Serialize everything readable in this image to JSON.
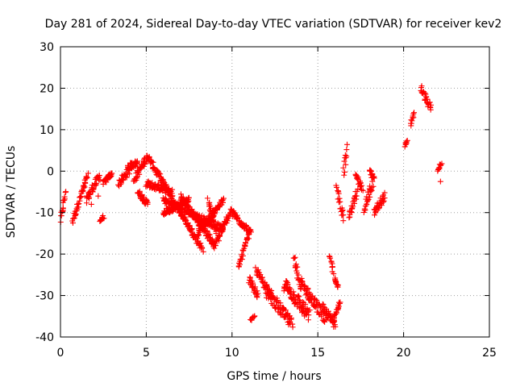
{
  "chart_data": {
    "type": "scatter",
    "title": "Day 281 of 2024, Sidereal Day-to-day VTEC variation (SDTVAR) for receiver kev2",
    "xlabel": "GPS time / hours",
    "ylabel": "SDTVAR / TECUs",
    "xlim": [
      0,
      25
    ],
    "ylim": [
      -40,
      30
    ],
    "x_ticks": [
      "0",
      "5",
      "10",
      "15",
      "20",
      "25"
    ],
    "y_ticks": [
      "30",
      "20",
      "10",
      "0",
      "-10",
      "-20",
      "-30",
      "-40"
    ],
    "grid": true,
    "marker": "plus",
    "series_color": "#ff0000",
    "segments": [
      {
        "x0": 0.0,
        "x1": 0.3,
        "y0": -12,
        "y1": -5,
        "jitter": 1.5
      },
      {
        "x0": 0.7,
        "x1": 1.6,
        "y0": -12,
        "y1": -1,
        "jitter": 1.5
      },
      {
        "x0": 1.5,
        "x1": 2.3,
        "y0": -7,
        "y1": -1,
        "jitter": 2.0
      },
      {
        "x0": 2.3,
        "x1": 2.5,
        "y0": -12,
        "y1": -11,
        "jitter": 0.8
      },
      {
        "x0": 2.5,
        "x1": 3.0,
        "y0": -3,
        "y1": -0.5,
        "jitter": 1.2
      },
      {
        "x0": 3.4,
        "x1": 4.0,
        "y0": -3,
        "y1": 0,
        "jitter": 1.8
      },
      {
        "x0": 3.9,
        "x1": 4.5,
        "y0": 1,
        "y1": 2,
        "jitter": 1.5
      },
      {
        "x0": 4.3,
        "x1": 5.0,
        "y0": -2,
        "y1": 3,
        "jitter": 1.8
      },
      {
        "x0": 4.5,
        "x1": 5.1,
        "y0": -5,
        "y1": -8,
        "jitter": 1.5
      },
      {
        "x0": 5.0,
        "x1": 8.3,
        "y0": 4,
        "y1": -19,
        "jitter": 1.5
      },
      {
        "x0": 5.0,
        "x1": 6.5,
        "y0": -3,
        "y1": -5,
        "jitter": 1.5
      },
      {
        "x0": 6.0,
        "x1": 9.5,
        "y0": -7,
        "y1": -14,
        "jitter": 1.5
      },
      {
        "x0": 6.0,
        "x1": 7.5,
        "y0": -10,
        "y1": -7,
        "jitter": 1.5
      },
      {
        "x0": 7.0,
        "x1": 9.0,
        "y0": -6,
        "y1": -18,
        "jitter": 1.5
      },
      {
        "x0": 8.0,
        "x1": 9.5,
        "y0": -15,
        "y1": -7,
        "jitter": 1.5
      },
      {
        "x0": 9.0,
        "x1": 10.0,
        "y0": -18,
        "y1": -9,
        "jitter": 1.5
      },
      {
        "x0": 8.6,
        "x1": 9.1,
        "y0": -7,
        "y1": -15,
        "jitter": 1.5
      },
      {
        "x0": 10.0,
        "x1": 11.1,
        "y0": -10,
        "y1": -15,
        "jitter": 1.5
      },
      {
        "x0": 10.4,
        "x1": 11.0,
        "y0": -23,
        "y1": -15,
        "jitter": 1.5
      },
      {
        "x0": 11.0,
        "x1": 11.5,
        "y0": -26,
        "y1": -30,
        "jitter": 1.5
      },
      {
        "x0": 11.1,
        "x1": 11.3,
        "y0": -36,
        "y1": -35,
        "jitter": 0.5
      },
      {
        "x0": 11.4,
        "x1": 12.3,
        "y0": -24,
        "y1": -30,
        "jitter": 2.0
      },
      {
        "x0": 12.0,
        "x1": 13.5,
        "y0": -29,
        "y1": -37,
        "jitter": 3.0
      },
      {
        "x0": 13.0,
        "x1": 14.5,
        "y0": -27,
        "y1": -35,
        "jitter": 3.5
      },
      {
        "x0": 13.6,
        "x1": 14.0,
        "y0": -21,
        "y1": -28,
        "jitter": 2.0
      },
      {
        "x0": 14.0,
        "x1": 15.5,
        "y0": -27,
        "y1": -36,
        "jitter": 3.0
      },
      {
        "x0": 15.3,
        "x1": 16.0,
        "y0": -33,
        "y1": -37,
        "jitter": 2.0
      },
      {
        "x0": 15.7,
        "x1": 15.9,
        "y0": -20,
        "y1": -24,
        "jitter": 1.5
      },
      {
        "x0": 16.0,
        "x1": 16.2,
        "y0": -26,
        "y1": -28,
        "jitter": 1.0
      },
      {
        "x0": 15.9,
        "x1": 16.3,
        "y0": -36,
        "y1": -32,
        "jitter": 1.5
      },
      {
        "x0": 16.1,
        "x1": 16.5,
        "y0": -4,
        "y1": -11,
        "jitter": 3.0
      },
      {
        "x0": 16.5,
        "x1": 16.7,
        "y0": 0,
        "y1": 5,
        "jitter": 3.0
      },
      {
        "x0": 16.8,
        "x1": 17.3,
        "y0": -11,
        "y1": -5,
        "jitter": 2.0
      },
      {
        "x0": 17.2,
        "x1": 17.6,
        "y0": -1,
        "y1": -4,
        "jitter": 1.5
      },
      {
        "x0": 17.7,
        "x1": 18.2,
        "y0": -9,
        "y1": -3,
        "jitter": 2.5
      },
      {
        "x0": 18.0,
        "x1": 18.3,
        "y0": 0,
        "y1": -2,
        "jitter": 1.5
      },
      {
        "x0": 18.3,
        "x1": 18.9,
        "y0": -10,
        "y1": -6,
        "jitter": 2.0
      },
      {
        "x0": 20.1,
        "x1": 20.2,
        "y0": 6,
        "y1": 7,
        "jitter": 1.0
      },
      {
        "x0": 20.4,
        "x1": 20.6,
        "y0": 11,
        "y1": 14,
        "jitter": 1.5
      },
      {
        "x0": 21.0,
        "x1": 21.6,
        "y0": 20,
        "y1": 15,
        "jitter": 1.8
      },
      {
        "x0": 22.0,
        "x1": 22.2,
        "y0": 0,
        "y1": 2,
        "jitter": 1.0
      }
    ],
    "isolated_points": [
      [
        22.15,
        -2.5
      ],
      [
        2.2,
        -6
      ],
      [
        1.8,
        -8
      ],
      [
        0.15,
        -9
      ],
      [
        16.05,
        -27
      ]
    ]
  }
}
